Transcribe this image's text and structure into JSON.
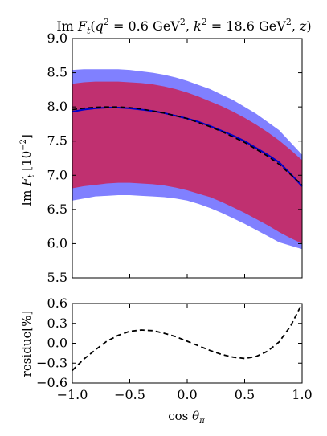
{
  "chart_data": [
    {
      "type": "line",
      "title": "Im F_t(q² = 0.6 GeV², k² = 18.6 GeV², z)",
      "ylabel": "Im F_t [10⁻²]",
      "xlim": [
        -1.0,
        1.0
      ],
      "ylim": [
        5.5,
        9.0
      ],
      "yticks": [
        "5.5",
        "6.0",
        "6.5",
        "7.0",
        "7.5",
        "8.0",
        "8.5",
        "9.0"
      ],
      "grid": false,
      "colors": {
        "outer_band": "#8080ff",
        "inner_band": "#c03070",
        "central_line": "#0000cc",
        "approx_line": "#000000"
      },
      "x": [
        -1.0,
        -0.9,
        -0.8,
        -0.7,
        -0.6,
        -0.5,
        -0.4,
        -0.3,
        -0.2,
        -0.1,
        0.0,
        0.1,
        0.2,
        0.3,
        0.4,
        0.5,
        0.6,
        0.7,
        0.8,
        0.9,
        1.0
      ],
      "series": [
        {
          "style": "solid",
          "values": [
            7.93,
            7.96,
            7.98,
            7.99,
            7.99,
            7.98,
            7.96,
            7.94,
            7.91,
            7.87,
            7.83,
            7.78,
            7.72,
            7.65,
            7.58,
            7.5,
            7.4,
            7.3,
            7.19,
            7.02,
            6.84
          ]
        },
        {
          "style": "dashed",
          "values": [
            7.96,
            7.98,
            7.995,
            8.0,
            8.0,
            7.99,
            7.97,
            7.94,
            7.91,
            7.87,
            7.83,
            7.77,
            7.71,
            7.64,
            7.56,
            7.48,
            7.38,
            7.28,
            7.16,
            7.01,
            6.86
          ]
        }
      ],
      "bands": [
        {
          "style": "outer",
          "upper": [
            8.54,
            8.55,
            8.55,
            8.55,
            8.55,
            8.54,
            8.52,
            8.5,
            8.47,
            8.43,
            8.38,
            8.32,
            8.26,
            8.18,
            8.1,
            8.0,
            7.9,
            7.78,
            7.66,
            7.48,
            7.3
          ],
          "lower": [
            6.63,
            6.66,
            6.69,
            6.7,
            6.71,
            6.71,
            6.7,
            6.69,
            6.68,
            6.66,
            6.63,
            6.58,
            6.52,
            6.45,
            6.37,
            6.29,
            6.2,
            6.11,
            6.02,
            5.97,
            5.92
          ]
        },
        {
          "style": "inner",
          "upper": [
            8.34,
            8.36,
            8.37,
            8.37,
            8.37,
            8.36,
            8.35,
            8.33,
            8.3,
            8.26,
            8.21,
            8.15,
            8.08,
            8.01,
            7.93,
            7.84,
            7.74,
            7.63,
            7.51,
            7.37,
            7.22
          ],
          "lower": [
            6.81,
            6.84,
            6.86,
            6.88,
            6.89,
            6.89,
            6.88,
            6.87,
            6.85,
            6.82,
            6.78,
            6.73,
            6.68,
            6.61,
            6.53,
            6.45,
            6.36,
            6.27,
            6.17,
            6.08,
            6.0
          ]
        }
      ]
    },
    {
      "type": "line",
      "xlabel": "cos θ_π",
      "ylabel": "residue[%]",
      "xlim": [
        -1.0,
        1.0
      ],
      "ylim": [
        -0.6,
        0.6
      ],
      "xticks": [
        "−1.0",
        "−0.5",
        "0.0",
        "0.5",
        "1.0"
      ],
      "yticks": [
        "−0.6",
        "−0.3",
        "0.0",
        "0.3",
        "0.6"
      ],
      "grid": false,
      "x": [
        -1.0,
        -0.9,
        -0.8,
        -0.7,
        -0.6,
        -0.5,
        -0.4,
        -0.3,
        -0.2,
        -0.1,
        0.0,
        0.1,
        0.2,
        0.3,
        0.4,
        0.5,
        0.6,
        0.7,
        0.8,
        0.9,
        1.0
      ],
      "series": [
        {
          "style": "dashed",
          "values": [
            -0.41,
            -0.24,
            -0.1,
            0.03,
            0.12,
            0.18,
            0.2,
            0.19,
            0.15,
            0.1,
            0.03,
            -0.04,
            -0.11,
            -0.17,
            -0.21,
            -0.23,
            -0.2,
            -0.12,
            0.02,
            0.26,
            0.6
          ]
        }
      ]
    }
  ]
}
